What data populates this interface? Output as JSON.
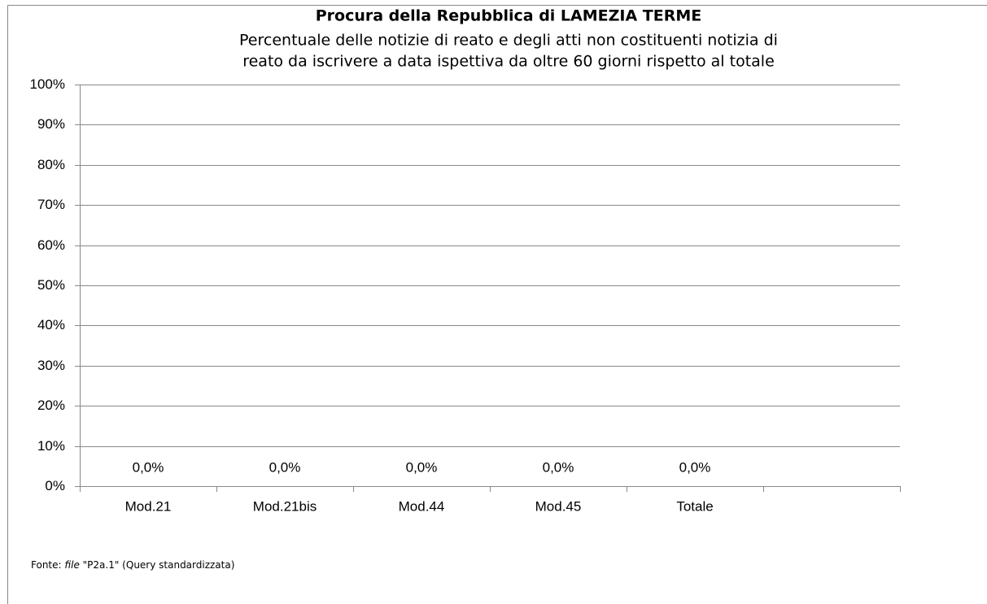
{
  "chart_data": {
    "type": "bar",
    "title": "Procura della Repubblica di LAMEZIA TERME",
    "subtitle": [
      "Percentuale delle notizie di reato e degli atti non costituenti notizia di",
      "reato da iscrivere a data ispettiva da oltre 60 giorni rispetto al totale"
    ],
    "categories": [
      "Mod.21",
      "Mod.21bis",
      "Mod.44",
      "Mod.45",
      "Totale",
      null
    ],
    "values": [
      0,
      0,
      0,
      0,
      0,
      null
    ],
    "value_labels": [
      "0,0%",
      "0,0%",
      "0,0%",
      "0,0%",
      "0,0%",
      null
    ],
    "color": "#4f81bd",
    "ylim": [
      0,
      100
    ],
    "yticks": [
      {
        "value": 0,
        "label": "0%"
      },
      {
        "value": 10,
        "label": "10%"
      },
      {
        "value": 20,
        "label": "20%"
      },
      {
        "value": 30,
        "label": "30%"
      },
      {
        "value": 40,
        "label": "40%"
      },
      {
        "value": 50,
        "label": "50%"
      },
      {
        "value": 60,
        "label": "60%"
      },
      {
        "value": 70,
        "label": "70%"
      },
      {
        "value": 80,
        "label": "80%"
      },
      {
        "value": 90,
        "label": "90%"
      },
      {
        "value": 100,
        "label": "100%"
      }
    ],
    "grid": true,
    "source": {
      "prefix": "Fonte: ",
      "italic": "file",
      "suffix": " \"P2a.1\" (Query standardizzata)"
    }
  }
}
